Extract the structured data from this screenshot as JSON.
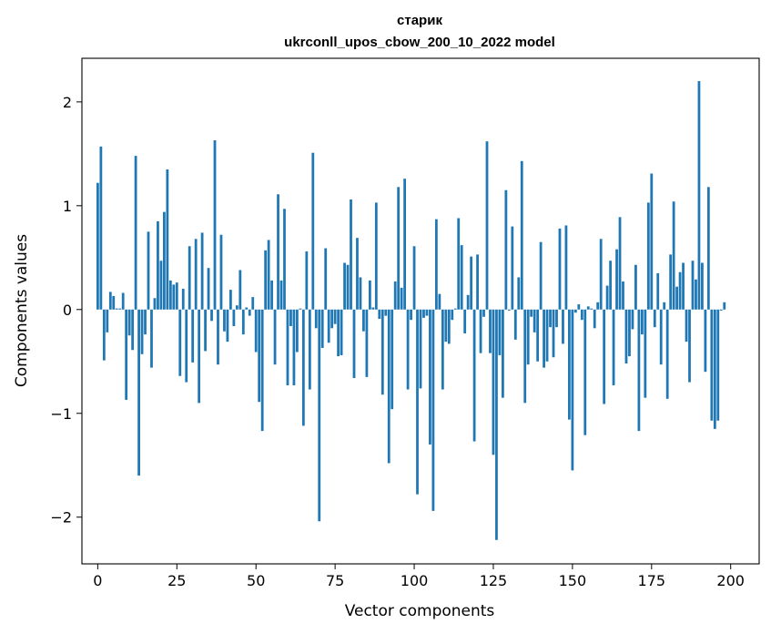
{
  "chart_data": {
    "type": "bar",
    "title": "старик",
    "subtitle": "ukrconll_upos_cbow_200_10_2022 model",
    "xlabel": "Vector components",
    "ylabel": "Components values",
    "xlim": [
      -5,
      209
    ],
    "ylim": [
      -2.45,
      2.42
    ],
    "xticks": [
      0,
      25,
      50,
      75,
      100,
      125,
      150,
      175,
      200
    ],
    "xtick_labels": [
      "0",
      "25",
      "50",
      "75",
      "100",
      "125",
      "150",
      "175",
      "200"
    ],
    "yticks": [
      -2,
      -1,
      0,
      1,
      2
    ],
    "ytick_labels": [
      "−2",
      "−1",
      "0",
      "1",
      "2"
    ],
    "grid": false,
    "color": "#1f77b4",
    "values": [
      1.22,
      1.57,
      -0.49,
      -0.22,
      0.17,
      0.13,
      0.01,
      0.01,
      0.16,
      -0.87,
      -0.25,
      -0.39,
      1.48,
      -1.6,
      -0.43,
      -0.24,
      0.75,
      -0.56,
      0.11,
      0.85,
      0.47,
      0.94,
      1.35,
      0.28,
      0.24,
      0.26,
      -0.64,
      0.2,
      -0.7,
      0.61,
      -0.51,
      0.68,
      -0.9,
      0.74,
      -0.4,
      0.4,
      -0.11,
      1.63,
      -0.53,
      0.72,
      -0.21,
      -0.31,
      0.19,
      -0.16,
      0.04,
      0.38,
      -0.24,
      0.02,
      -0.06,
      0.12,
      -0.41,
      -0.89,
      -1.17,
      0.57,
      0.67,
      0.28,
      -0.53,
      1.11,
      0.28,
      0.97,
      -0.73,
      -0.16,
      -0.73,
      -0.41,
      0.01,
      -1.12,
      0.56,
      -0.77,
      1.51,
      -0.18,
      -2.04,
      -0.37,
      0.59,
      -0.32,
      -0.18,
      -0.14,
      -0.45,
      -0.44,
      0.45,
      0.43,
      1.06,
      -0.66,
      0.69,
      0.31,
      -0.21,
      -0.65,
      0.28,
      0.02,
      1.03,
      -0.09,
      -0.82,
      -0.06,
      -1.48,
      -0.96,
      0.27,
      1.18,
      0.21,
      1.26,
      -0.77,
      -0.1,
      0.61,
      -1.78,
      -0.76,
      -0.08,
      -0.06,
      -1.3,
      -1.94,
      0.87,
      0.15,
      -0.77,
      -0.31,
      -0.33,
      -0.1,
      0.01,
      0.88,
      0.62,
      -0.23,
      0.14,
      0.51,
      -1.27,
      0.53,
      -0.42,
      -0.07,
      1.62,
      -0.42,
      -1.4,
      -2.22,
      -0.44,
      -0.85,
      1.15,
      -0.01,
      0.8,
      -0.29,
      0.31,
      1.43,
      -0.9,
      -0.53,
      -0.07,
      -0.22,
      -0.5,
      0.65,
      -0.56,
      -0.5,
      -0.17,
      -0.46,
      -0.17,
      0.78,
      -0.33,
      0.81,
      -1.06,
      -1.55,
      -0.03,
      0.05,
      -0.1,
      -1.21,
      0.03,
      0.01,
      -0.18,
      0.07,
      0.68,
      -0.91,
      0.23,
      0.47,
      -0.73,
      0.58,
      0.89,
      0.27,
      -0.52,
      -0.45,
      -0.19,
      0.43,
      -1.17,
      -0.24,
      -0.85,
      1.03,
      1.31,
      -0.17,
      0.35,
      -0.53,
      0.07,
      -0.86,
      0.53,
      1.04,
      0.22,
      0.36,
      0.45,
      -0.31,
      -0.7,
      0.47,
      0.29,
      2.2,
      0.45,
      -0.6,
      1.18,
      -1.07,
      -1.15,
      -1.07,
      -0.01,
      0.07
    ]
  }
}
